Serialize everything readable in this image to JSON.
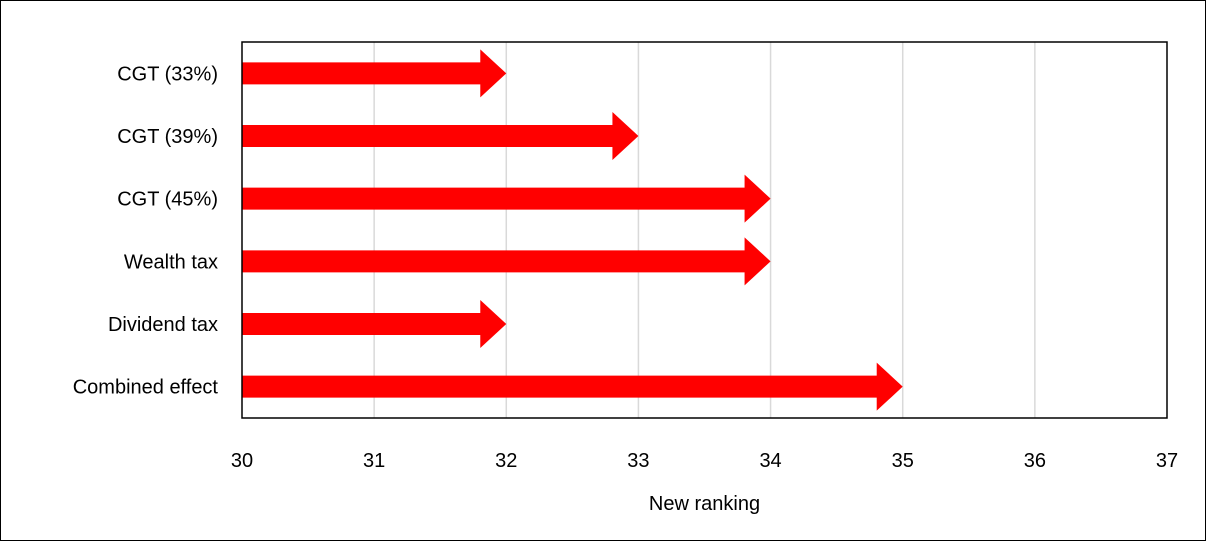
{
  "chart_data": {
    "type": "bar",
    "orientation": "horizontal",
    "mark_shape": "arrow",
    "categories": [
      "CGT (33%)",
      "CGT (39%)",
      "CGT (45%)",
      "Wealth tax",
      "Dividend tax",
      "Combined effect"
    ],
    "values": [
      32,
      33,
      34,
      34,
      32,
      35
    ],
    "xlabel": "New ranking",
    "ylabel": "",
    "title": "",
    "xlim": [
      30,
      37
    ],
    "xticks": [
      "30",
      "31",
      "32",
      "33",
      "34",
      "35",
      "36",
      "37"
    ],
    "grid": "vertical",
    "legend": "none",
    "colors": {
      "bar": "#ff0000",
      "grid": "#d9d9d9",
      "axis": "#000000",
      "frame": "#000000"
    }
  }
}
